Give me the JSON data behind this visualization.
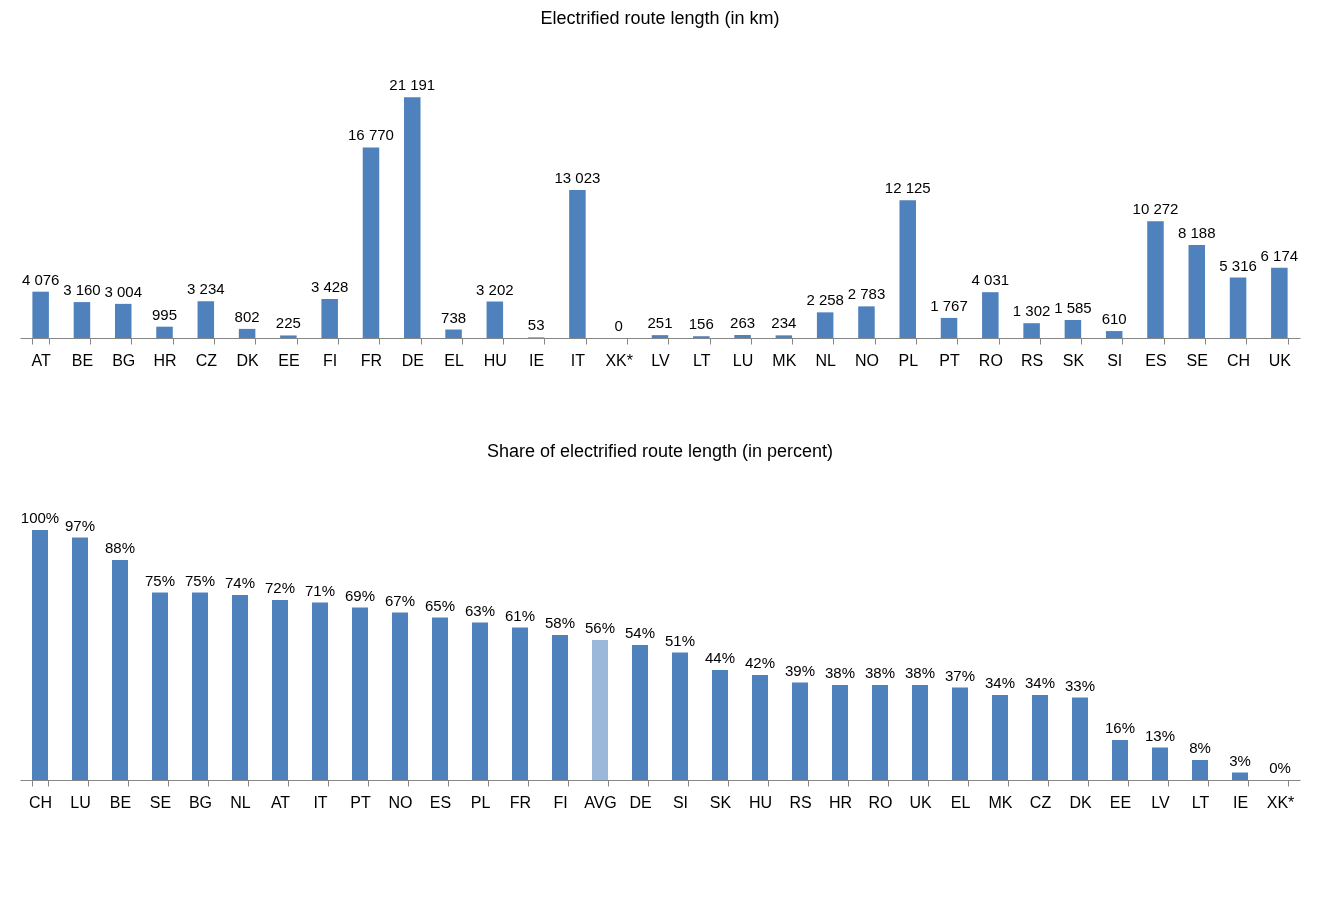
{
  "chart_data": [
    {
      "type": "bar",
      "title": "Electrified route length (in km)",
      "categories": [
        "AT",
        "BE",
        "BG",
        "HR",
        "CZ",
        "DK",
        "EE",
        "FI",
        "FR",
        "DE",
        "EL",
        "HU",
        "IE",
        "IT",
        "XK*",
        "LV",
        "LT",
        "LU",
        "MK",
        "NL",
        "NO",
        "PL",
        "PT",
        "RO",
        "RS",
        "SK",
        "SI",
        "ES",
        "SE",
        "CH",
        "UK"
      ],
      "values": [
        4076,
        3160,
        3004,
        995,
        3234,
        802,
        225,
        3428,
        16770,
        21191,
        738,
        3202,
        53,
        13023,
        0,
        251,
        156,
        263,
        234,
        2258,
        2783,
        12125,
        1767,
        4031,
        1302,
        1585,
        610,
        10272,
        8188,
        5316,
        6174
      ],
      "value_labels": [
        "4 076",
        "3 160",
        "3 004",
        "995",
        "3 234",
        "802",
        "225",
        "3 428",
        "16 770",
        "21 191",
        "738",
        "3 202",
        "53",
        "13 023",
        "0",
        "251",
        "156",
        "263",
        "234",
        "2 258",
        "2 783",
        "12 125",
        "1 767",
        "4 031",
        "1 302",
        "1 585",
        "610",
        "10 272",
        "8 188",
        "5 316",
        "6 174"
      ],
      "color": "#4f81bd"
    },
    {
      "type": "bar",
      "title": "Share of electrified route length (in percent)",
      "categories": [
        "CH",
        "LU",
        "BE",
        "SE",
        "BG",
        "NL",
        "AT",
        "IT",
        "PT",
        "NO",
        "ES",
        "PL",
        "FR",
        "FI",
        "AVG",
        "DE",
        "SI",
        "SK",
        "HU",
        "RS",
        "HR",
        "RO",
        "UK",
        "EL",
        "MK",
        "CZ",
        "DK",
        "EE",
        "LV",
        "LT",
        "IE",
        "XK*"
      ],
      "values": [
        100,
        97,
        88,
        75,
        75,
        74,
        72,
        71,
        69,
        67,
        65,
        63,
        61,
        58,
        56,
        54,
        51,
        44,
        42,
        39,
        38,
        38,
        38,
        37,
        34,
        34,
        33,
        16,
        13,
        8,
        3,
        0
      ],
      "value_labels": [
        "100%",
        "97%",
        "88%",
        "75%",
        "75%",
        "74%",
        "72%",
        "71%",
        "69%",
        "67%",
        "65%",
        "63%",
        "61%",
        "58%",
        "56%",
        "54%",
        "51%",
        "44%",
        "42%",
        "39%",
        "38%",
        "38%",
        "38%",
        "37%",
        "34%",
        "34%",
        "33%",
        "16%",
        "13%",
        "8%",
        "3%",
        "0%"
      ],
      "colors": [
        "#4f81bd",
        "#4f81bd",
        "#4f81bd",
        "#4f81bd",
        "#4f81bd",
        "#4f81bd",
        "#4f81bd",
        "#4f81bd",
        "#4f81bd",
        "#4f81bd",
        "#4f81bd",
        "#4f81bd",
        "#4f81bd",
        "#4f81bd",
        "#9bb7da",
        "#4f81bd",
        "#4f81bd",
        "#4f81bd",
        "#4f81bd",
        "#4f81bd",
        "#4f81bd",
        "#4f81bd",
        "#4f81bd",
        "#4f81bd",
        "#4f81bd",
        "#4f81bd",
        "#4f81bd",
        "#4f81bd",
        "#4f81bd",
        "#4f81bd",
        "#4f81bd",
        "#4f81bd"
      ],
      "grid": false
    }
  ]
}
